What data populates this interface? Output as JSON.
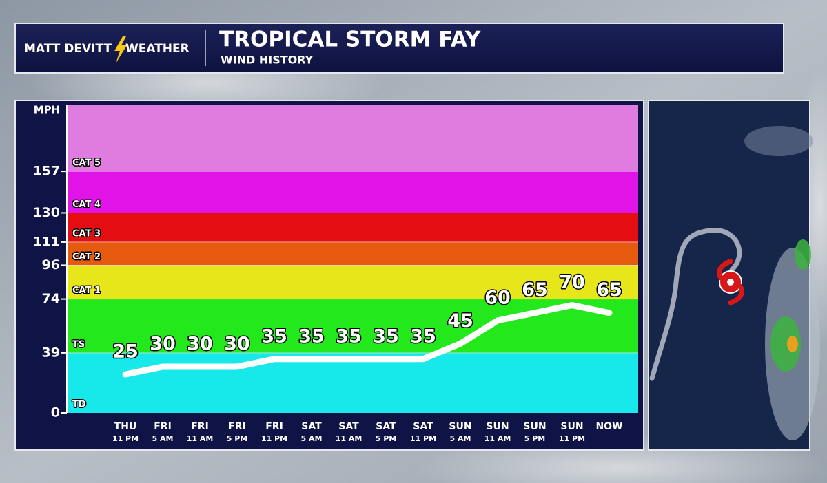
{
  "header": {
    "logo_left": "MATT DEVITT",
    "logo_right": "WEATHER"
  },
  "chart_data": {
    "type": "line",
    "title": "TROPICAL STORM FAY",
    "subtitle": "WIND HISTORY",
    "y_label": "MPH",
    "categories": [
      [
        "THU",
        "11 PM"
      ],
      [
        "FRI",
        "5 AM"
      ],
      [
        "FRI",
        "11 AM"
      ],
      [
        "FRI",
        "5 PM"
      ],
      [
        "FRI",
        "11 PM"
      ],
      [
        "SAT",
        "5 AM"
      ],
      [
        "SAT",
        "11 AM"
      ],
      [
        "SAT",
        "5 PM"
      ],
      [
        "SAT",
        "11 PM"
      ],
      [
        "SUN",
        "5 AM"
      ],
      [
        "SUN",
        "11 AM"
      ],
      [
        "SUN",
        "5 PM"
      ],
      [
        "SUN",
        "11 PM"
      ],
      [
        "NOW"
      ]
    ],
    "values": [
      25,
      30,
      30,
      30,
      35,
      35,
      35,
      35,
      35,
      45,
      60,
      65,
      70,
      65
    ],
    "color": "#ffffff",
    "ylim": [
      0,
      200
    ],
    "yticks": [
      0,
      39,
      74,
      96,
      111,
      130,
      157
    ],
    "bands": [
      {
        "name": "TD",
        "from": 0,
        "color": "#17e8ea"
      },
      {
        "name": "TS",
        "from": 39,
        "color": "#22e81c"
      },
      {
        "name": "CAT 1",
        "from": 74,
        "color": "#e6e61a"
      },
      {
        "name": "CAT 2",
        "from": 96,
        "color": "#e65a10"
      },
      {
        "name": "CAT 3",
        "from": 111,
        "color": "#e30d12"
      },
      {
        "name": "CAT 4",
        "from": 130,
        "color": "#e014e6"
      },
      {
        "name": "CAT 5",
        "from": 157,
        "color": "#e07ce0"
      }
    ]
  }
}
